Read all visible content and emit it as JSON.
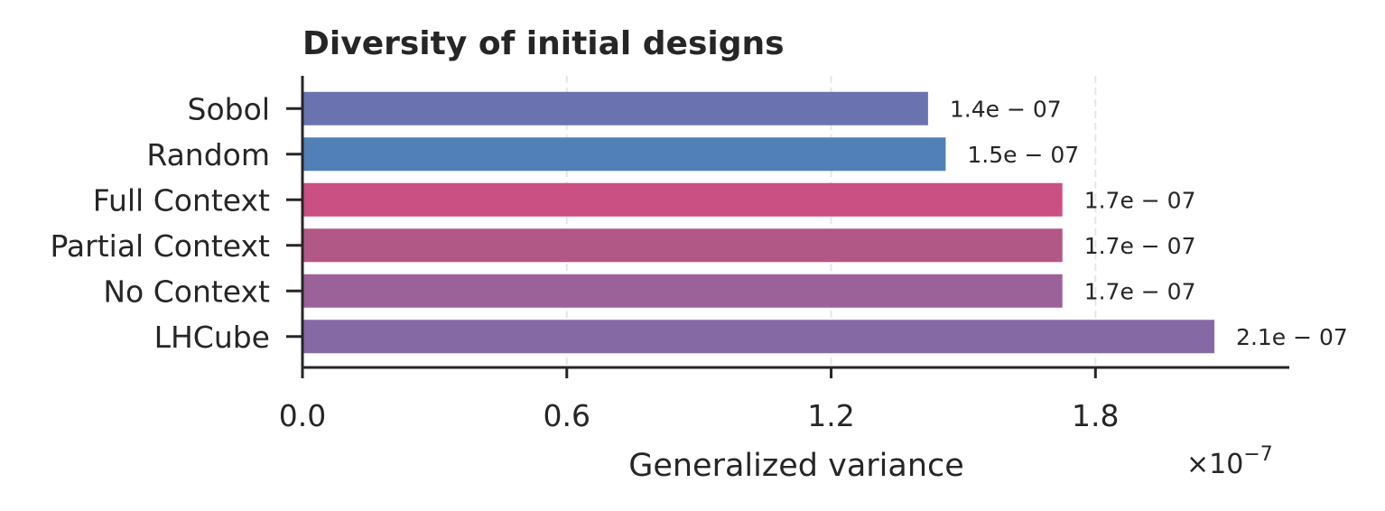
{
  "chart_data": {
    "type": "bar",
    "orientation": "horizontal",
    "title": "Diversity of initial designs",
    "xlabel": "Generalized variance",
    "ylabel": "",
    "x_scale_factor": "×10",
    "x_scale_exponent": "−7",
    "xlim": [
      0,
      2.24
    ],
    "xticks": [
      0.0,
      0.6,
      1.2,
      1.8
    ],
    "xtick_labels": [
      "0.0",
      "0.6",
      "1.2",
      "1.8"
    ],
    "grid": "vertical dashed",
    "categories": [
      "Sobol",
      "Random",
      "Full Context",
      "Partial Context",
      "No Context",
      "LHCube"
    ],
    "values": [
      1.42,
      1.46,
      1.725,
      1.725,
      1.725,
      2.07
    ],
    "data_labels": [
      "1.4e − 07",
      "1.5e − 07",
      "1.7e − 07",
      "1.7e − 07",
      "1.7e − 07",
      "2.1e − 07"
    ],
    "colors": [
      "#6b72b0",
      "#517fb8",
      "#ca4f83",
      "#b25887",
      "#9b6199",
      "#8469a4"
    ]
  }
}
